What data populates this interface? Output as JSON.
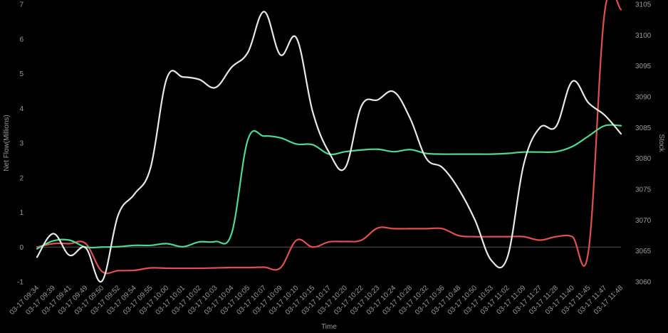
{
  "chart_data": {
    "type": "line",
    "xlabel": "Time",
    "ylabel_left": "Net Flow(Millions)",
    "ylabel_right": "Stock",
    "ylim_left": [
      -1,
      7
    ],
    "ylim_right": [
      3060,
      3105
    ],
    "yticks_left": [
      "-1",
      "0",
      "1",
      "2",
      "3",
      "4",
      "5",
      "6",
      "7"
    ],
    "yticks_right": [
      "3060",
      "3065",
      "3070",
      "3075",
      "3080",
      "3085",
      "3090",
      "3095",
      "3100",
      "3105"
    ],
    "categories": [
      "03-17 09:34",
      "03-17 09:39",
      "03-17 09:41",
      "03-17 09:49",
      "03-17 09:50",
      "03-17 09:52",
      "03-17 09:54",
      "03-17 09:55",
      "03-17 10:00",
      "03-17 10:01",
      "03-17 10:02",
      "03-17 10:03",
      "03-17 10:04",
      "03-17 10:05",
      "03-17 10:07",
      "03-17 10:09",
      "03-17 10:10",
      "03-17 10:15",
      "03-17 10:17",
      "03-17 10:20",
      "03-17 10:22",
      "03-17 10:23",
      "03-17 10:24",
      "03-17 10:28",
      "03-17 10:32",
      "03-17 10:36",
      "03-17 10:48",
      "03-17 10:50",
      "03-17 10:53",
      "03-17 11:02",
      "03-17 11:09",
      "03-17 11:27",
      "03-17 11:28",
      "03-17 11:40",
      "03-17 11:45",
      "03-17 11:47",
      "03-17 11:48"
    ],
    "grid": false,
    "series": [
      {
        "color": "#e8e8e8",
        "axis": "right",
        "values": [
          3064.0,
          3067.8,
          3064.3,
          3065.5,
          3060.1,
          3070.8,
          3074.2,
          3078.5,
          3093.0,
          3093.2,
          3092.8,
          3091.5,
          3094.8,
          3097.2,
          3103.8,
          3096.8,
          3099.5,
          3087.5,
          3081.0,
          3078.5,
          3088.5,
          3089.5,
          3090.8,
          3086.5,
          3080.0,
          3078.5,
          3075.0,
          3070.0,
          3063.5,
          3064.0,
          3079.0,
          3085.0,
          3085.2,
          3092.5,
          3089.0,
          3087.0,
          3084.0
        ]
      },
      {
        "color": "#50d890",
        "axis": "left",
        "values": [
          -0.05,
          0.18,
          0.2,
          0.0,
          0.0,
          0.01,
          0.05,
          0.05,
          0.1,
          0.01,
          0.15,
          0.16,
          0.4,
          3.1,
          3.2,
          3.15,
          2.97,
          2.95,
          2.68,
          2.75,
          2.8,
          2.82,
          2.75,
          2.81,
          2.7,
          2.68,
          2.68,
          2.68,
          2.68,
          2.7,
          2.74,
          2.74,
          2.75,
          2.9,
          3.2,
          3.5,
          3.5
        ]
      },
      {
        "color": "#e05050",
        "axis": "left",
        "values": [
          0.0,
          0.1,
          0.1,
          0.1,
          -0.7,
          -0.68,
          -0.67,
          -0.6,
          -0.61,
          -0.61,
          -0.61,
          -0.6,
          -0.59,
          -0.59,
          -0.58,
          -0.6,
          0.2,
          0.0,
          0.15,
          0.16,
          0.2,
          0.55,
          0.53,
          0.53,
          0.53,
          0.53,
          0.33,
          0.3,
          0.3,
          0.3,
          0.3,
          0.2,
          0.3,
          0.3,
          -0.1,
          6.8,
          6.85
        ]
      }
    ],
    "zero_line": true
  }
}
